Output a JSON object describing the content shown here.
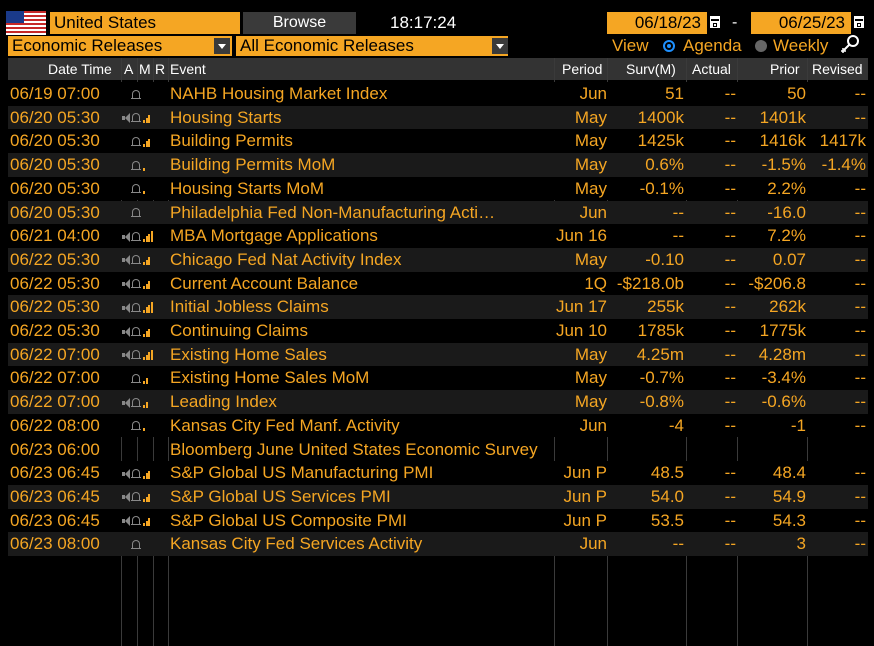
{
  "header": {
    "country": "United States",
    "browse_label": "Browse",
    "time": "18:17:24",
    "date_start": "06/18/23",
    "date_separator": "-",
    "date_end": "06/25/23"
  },
  "filters": {
    "category": "Economic Releases",
    "subcategory": "All Economic Releases",
    "view_label": "View",
    "agenda_label": "Agenda",
    "weekly_label": "Weekly",
    "selected_view": "Agenda"
  },
  "columns": {
    "date_time": "Date Time",
    "a": "A",
    "m": "M",
    "r": "R",
    "event": "Event",
    "period": "Period",
    "surv": "Surv(M)",
    "actual": "Actual",
    "prior": "Prior",
    "revised": "Revised"
  },
  "colors": {
    "accent": "#f5a623",
    "background": "#000000",
    "header_bg": "#333333"
  },
  "rows": [
    {
      "date": "06/19 07:00",
      "icons": "bell",
      "event": "NAHB Housing Market Index",
      "period": "Jun",
      "surv": "51",
      "actual": "--",
      "prior": "50",
      "revised": "--",
      "bars": 0
    },
    {
      "date": "06/20 05:30",
      "icons": "speaker-bell-bars",
      "event": "Housing Starts",
      "period": "May",
      "surv": "1400k",
      "actual": "--",
      "prior": "1401k",
      "revised": "--",
      "bars": 3
    },
    {
      "date": "06/20 05:30",
      "icons": "bell-bars",
      "event": "Building Permits",
      "period": "May",
      "surv": "1425k",
      "actual": "--",
      "prior": "1416k",
      "revised": "1417k",
      "bars": 3
    },
    {
      "date": "06/20 05:30",
      "icons": "bell-bars",
      "event": "Building Permits MoM",
      "period": "May",
      "surv": "0.6%",
      "actual": "--",
      "prior": "-1.5%",
      "revised": "-1.4%",
      "bars": 1
    },
    {
      "date": "06/20 05:30",
      "icons": "bell-bars",
      "event": "Housing Starts MoM",
      "period": "May",
      "surv": "-0.1%",
      "actual": "--",
      "prior": "2.2%",
      "revised": "--",
      "bars": 1
    },
    {
      "date": "06/20 05:30",
      "icons": "bell",
      "event": "Philadelphia Fed Non-Manufacturing Acti…",
      "period": "Jun",
      "surv": "--",
      "actual": "--",
      "prior": "-16.0",
      "revised": "--",
      "bars": 0
    },
    {
      "date": "06/21 04:00",
      "icons": "speaker-bell-bars",
      "event": "MBA Mortgage Applications",
      "period": "Jun 16",
      "surv": "--",
      "actual": "--",
      "prior": "7.2%",
      "revised": "--",
      "bars": 4
    },
    {
      "date": "06/22 05:30",
      "icons": "speaker-bell-bars",
      "event": "Chicago Fed Nat Activity Index",
      "period": "May",
      "surv": "-0.10",
      "actual": "--",
      "prior": "0.07",
      "revised": "--",
      "bars": 3
    },
    {
      "date": "06/22 05:30",
      "icons": "speaker-bell-bars",
      "event": "Current Account Balance",
      "period": "1Q",
      "surv": "-$218.0b",
      "actual": "--",
      "prior": "-$206.8",
      "revised": "--",
      "bars": 3
    },
    {
      "date": "06/22 05:30",
      "icons": "speaker-bell-bars",
      "event": "Initial Jobless Claims",
      "period": "Jun 17",
      "surv": "255k",
      "actual": "--",
      "prior": "262k",
      "revised": "--",
      "bars": 4
    },
    {
      "date": "06/22 05:30",
      "icons": "speaker-bell-bars",
      "event": "Continuing Claims",
      "period": "Jun 10",
      "surv": "1785k",
      "actual": "--",
      "prior": "1775k",
      "revised": "--",
      "bars": 3
    },
    {
      "date": "06/22 07:00",
      "icons": "speaker-bell-bars",
      "event": "Existing Home Sales",
      "period": "May",
      "surv": "4.25m",
      "actual": "--",
      "prior": "4.28m",
      "revised": "--",
      "bars": 4
    },
    {
      "date": "06/22 07:00",
      "icons": "bell-bars",
      "event": "Existing Home Sales MoM",
      "period": "May",
      "surv": "-0.7%",
      "actual": "--",
      "prior": "-3.4%",
      "revised": "--",
      "bars": 2
    },
    {
      "date": "06/22 07:00",
      "icons": "speaker-bell-bars",
      "event": "Leading Index",
      "period": "May",
      "surv": "-0.8%",
      "actual": "--",
      "prior": "-0.6%",
      "revised": "--",
      "bars": 2
    },
    {
      "date": "06/22 08:00",
      "icons": "bell-bars",
      "event": "Kansas City Fed Manf. Activity",
      "period": "Jun",
      "surv": "-4",
      "actual": "--",
      "prior": "-1",
      "revised": "--",
      "bars": 1
    },
    {
      "date": "06/23 06:00",
      "icons": "",
      "event": "Bloomberg June United States Economic Survey",
      "period": "",
      "surv": "",
      "actual": "",
      "prior": "",
      "revised": "",
      "bars": 0
    },
    {
      "date": "06/23 06:45",
      "icons": "speaker-bell-bars",
      "event": "S&P Global US Manufacturing PMI",
      "period": "Jun P",
      "surv": "48.5",
      "actual": "--",
      "prior": "48.4",
      "revised": "--",
      "bars": 3
    },
    {
      "date": "06/23 06:45",
      "icons": "speaker-bell-bars",
      "event": "S&P Global US Services PMI",
      "period": "Jun P",
      "surv": "54.0",
      "actual": "--",
      "prior": "54.9",
      "revised": "--",
      "bars": 3
    },
    {
      "date": "06/23 06:45",
      "icons": "speaker-bell-bars",
      "event": "S&P Global US Composite PMI",
      "period": "Jun P",
      "surv": "53.5",
      "actual": "--",
      "prior": "54.3",
      "revised": "--",
      "bars": 3
    },
    {
      "date": "06/23 08:00",
      "icons": "bell",
      "event": "Kansas City Fed Services Activity",
      "period": "Jun",
      "surv": "--",
      "actual": "--",
      "prior": "3",
      "revised": "--",
      "bars": 0
    }
  ]
}
